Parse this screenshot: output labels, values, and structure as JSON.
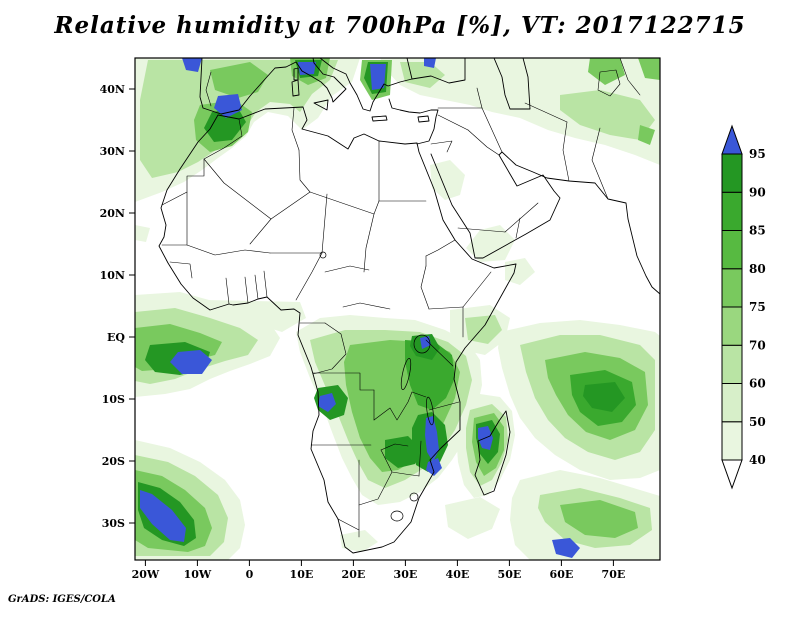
{
  "title": "Relative humidity at 700hPa [%], VT: 2017122715",
  "stamp": "GrADS: IGES/COLA",
  "chart_data": {
    "type": "heatmap",
    "subtype": "filled-contour-weather-map",
    "variable": "Relative humidity",
    "pressure_level": "700hPa",
    "units": "%",
    "valid_time": "2017122715",
    "map_extent": {
      "lon_min": -22,
      "lon_max": 79,
      "lat_min": -36,
      "lat_max": 45
    },
    "grid": "on-frame ticks only, no gridlines",
    "x_ticks": [
      {
        "label": "20W",
        "lon": -20
      },
      {
        "label": "10W",
        "lon": -10
      },
      {
        "label": "0",
        "lon": 0
      },
      {
        "label": "10E",
        "lon": 10
      },
      {
        "label": "20E",
        "lon": 20
      },
      {
        "label": "30E",
        "lon": 30
      },
      {
        "label": "40E",
        "lon": 40
      },
      {
        "label": "50E",
        "lon": 50
      },
      {
        "label": "60E",
        "lon": 60
      },
      {
        "label": "70E",
        "lon": 70
      }
    ],
    "y_ticks": [
      {
        "label": "40N",
        "lat": 40
      },
      {
        "label": "30N",
        "lat": 30
      },
      {
        "label": "20N",
        "lat": 20
      },
      {
        "label": "10N",
        "lat": 10
      },
      {
        "label": "EQ",
        "lat": 0
      },
      {
        "label": "10S",
        "lat": -10
      },
      {
        "label": "20S",
        "lat": -20
      },
      {
        "label": "30S",
        "lat": -30
      }
    ],
    "colorbar": {
      "position": "right",
      "levels": [
        40,
        50,
        60,
        70,
        75,
        80,
        85,
        90,
        95
      ],
      "labels_top_to_bottom": [
        "95",
        "90",
        "85",
        "80",
        "75",
        "70",
        "60",
        "50",
        "40"
      ],
      "colors_low_to_high": [
        "#ffffff",
        "#e9f6e0",
        "#d7efc9",
        "#b9e4a4",
        "#9ad77f",
        "#79c95e",
        "#57ba41",
        "#3aa92e",
        "#249723",
        "#3a57d8"
      ],
      "extend": "both",
      "above_max_color": "#3a57d8",
      "below_min_color": "#ffffff"
    },
    "features": [
      {
        "region": "NW Africa / Iberia / W Mediterranean",
        "rh_range": "70-95+",
        "note": "blue cores (>95%) over S Spain, N Morocco, N Italy and the Aegean"
      },
      {
        "region": "Turkey / Caucasus / Iran plateau",
        "rh_range": "40-85"
      },
      {
        "region": "Equatorial E Atlantic (0-10S, 20W-5E)",
        "rh_range": "60-95+",
        "note": "blue core near 5S 10W"
      },
      {
        "region": "Congo Basin / Angola / Zambia / Tanzania",
        "rh_range": "50-90"
      },
      {
        "region": "Lake Malawi / Mozambique corridor",
        "rh_range": "90-95+",
        "note": "blue streaks along the lake"
      },
      {
        "region": "Madagascar",
        "rh_range": "70-95+",
        "note": "blue core over NW interior"
      },
      {
        "region": "SW Indian Ocean swirl (5-20S, 50-75E)",
        "rh_range": "60-90"
      },
      {
        "region": "SE Atlantic frontal band (SW corner)",
        "rh_range": "60-95+",
        "note": "blue diagonal streak"
      },
      {
        "region": "Swirls south of Madagascar (30-36S)",
        "rh_range": "40-80"
      },
      {
        "region": "Sahara, Arabian interior, Namib/Kalahari",
        "rh_range": "<40 (dry, white)"
      }
    ]
  },
  "colors": {
    "background": "#ffffff",
    "outline": "#000000",
    "text": "#000000"
  }
}
